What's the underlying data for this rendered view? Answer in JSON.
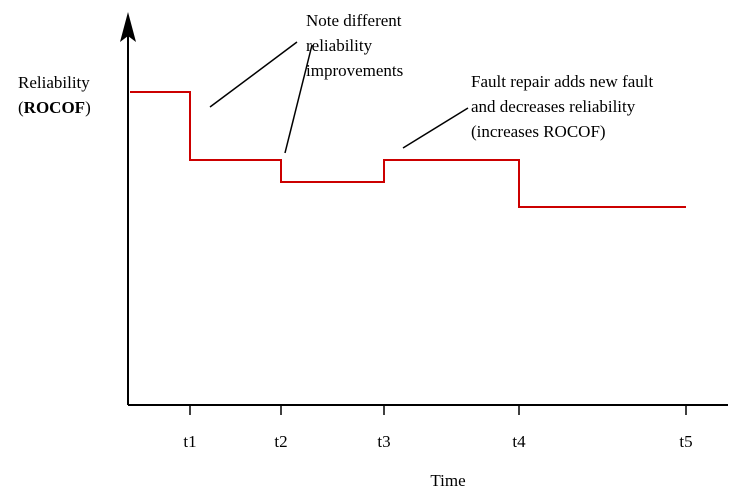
{
  "y_axis_label": {
    "line1": "Reliability",
    "open": "(",
    "bold": "ROCOF",
    "close": ")"
  },
  "x_axis_label": "Time",
  "ticks": [
    "t1",
    "t2",
    "t3",
    "t4",
    "t5"
  ],
  "annotations": [
    {
      "lines": [
        "Note different",
        "reliability",
        "improvements"
      ]
    },
    {
      "lines": [
        "Fault repair adds new fault",
        "and decreases reliability",
        "(increases ROCOF)"
      ]
    }
  ]
}
